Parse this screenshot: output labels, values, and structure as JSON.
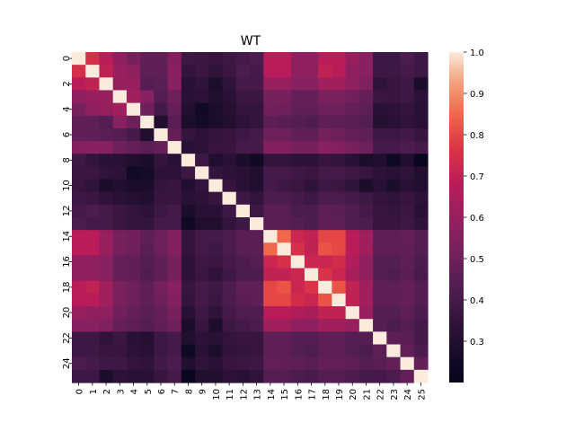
{
  "chart_data": {
    "type": "heatmap",
    "title": "WT",
    "xlabel": "",
    "ylabel": "",
    "x_tick_labels": [
      "0",
      "1",
      "2",
      "3",
      "4",
      "5",
      "6",
      "7",
      "8",
      "9",
      "10",
      "11",
      "12",
      "13",
      "14",
      "15",
      "16",
      "17",
      "18",
      "19",
      "20",
      "21",
      "22",
      "23",
      "24",
      "25"
    ],
    "y_tick_labels": [
      "0",
      "2",
      "4",
      "6",
      "8",
      "10",
      "12",
      "14",
      "16",
      "18",
      "20",
      "22",
      "24"
    ],
    "colorbar": {
      "range": [
        0.2,
        1.0
      ],
      "tick_labels": [
        "0.3",
        "0.4",
        "0.5",
        "0.6",
        "0.7",
        "0.8",
        "0.9",
        "1.0"
      ],
      "colormap": "rocket"
    },
    "grid": false,
    "values": [
      [
        1.0,
        0.75,
        0.68,
        0.58,
        0.52,
        0.47,
        0.47,
        0.55,
        0.38,
        0.37,
        0.36,
        0.38,
        0.4,
        0.42,
        0.68,
        0.68,
        0.58,
        0.58,
        0.68,
        0.68,
        0.6,
        0.56,
        0.38,
        0.38,
        0.42,
        0.38
      ],
      [
        0.75,
        1.0,
        0.7,
        0.6,
        0.58,
        0.46,
        0.46,
        0.56,
        0.35,
        0.37,
        0.34,
        0.37,
        0.42,
        0.4,
        0.68,
        0.68,
        0.58,
        0.58,
        0.7,
        0.68,
        0.58,
        0.56,
        0.38,
        0.38,
        0.4,
        0.38
      ],
      [
        0.68,
        0.7,
        1.0,
        0.6,
        0.6,
        0.44,
        0.45,
        0.56,
        0.32,
        0.34,
        0.28,
        0.34,
        0.4,
        0.4,
        0.6,
        0.6,
        0.56,
        0.56,
        0.62,
        0.62,
        0.58,
        0.54,
        0.34,
        0.36,
        0.38,
        0.28
      ],
      [
        0.58,
        0.6,
        0.6,
        1.0,
        0.62,
        0.56,
        0.44,
        0.5,
        0.32,
        0.33,
        0.3,
        0.32,
        0.37,
        0.37,
        0.52,
        0.52,
        0.48,
        0.48,
        0.53,
        0.53,
        0.51,
        0.48,
        0.37,
        0.36,
        0.38,
        0.33
      ],
      [
        0.52,
        0.58,
        0.6,
        0.62,
        1.0,
        0.5,
        0.4,
        0.48,
        0.3,
        0.25,
        0.28,
        0.31,
        0.35,
        0.35,
        0.51,
        0.5,
        0.47,
        0.47,
        0.5,
        0.5,
        0.48,
        0.46,
        0.32,
        0.33,
        0.35,
        0.32
      ],
      [
        0.47,
        0.46,
        0.44,
        0.56,
        0.5,
        1.0,
        0.3,
        0.45,
        0.28,
        0.26,
        0.28,
        0.3,
        0.33,
        0.35,
        0.46,
        0.45,
        0.44,
        0.43,
        0.46,
        0.46,
        0.45,
        0.44,
        0.31,
        0.32,
        0.34,
        0.32
      ],
      [
        0.47,
        0.46,
        0.45,
        0.44,
        0.4,
        0.3,
        1.0,
        0.48,
        0.35,
        0.33,
        0.35,
        0.36,
        0.38,
        0.4,
        0.5,
        0.5,
        0.47,
        0.46,
        0.52,
        0.5,
        0.48,
        0.47,
        0.38,
        0.38,
        0.39,
        0.36
      ],
      [
        0.55,
        0.56,
        0.56,
        0.5,
        0.48,
        0.45,
        0.48,
        1.0,
        0.32,
        0.33,
        0.36,
        0.36,
        0.4,
        0.4,
        0.55,
        0.55,
        0.52,
        0.52,
        0.56,
        0.55,
        0.52,
        0.5,
        0.4,
        0.4,
        0.42,
        0.4
      ],
      [
        0.38,
        0.35,
        0.32,
        0.32,
        0.3,
        0.28,
        0.35,
        0.32,
        1.0,
        0.38,
        0.3,
        0.32,
        0.28,
        0.25,
        0.35,
        0.35,
        0.33,
        0.33,
        0.36,
        0.35,
        0.32,
        0.28,
        0.3,
        0.24,
        0.3,
        0.22
      ],
      [
        0.37,
        0.37,
        0.34,
        0.33,
        0.25,
        0.26,
        0.33,
        0.33,
        0.38,
        1.0,
        0.35,
        0.33,
        0.32,
        0.3,
        0.4,
        0.4,
        0.38,
        0.37,
        0.4,
        0.4,
        0.38,
        0.36,
        0.33,
        0.32,
        0.34,
        0.3
      ],
      [
        0.36,
        0.34,
        0.28,
        0.3,
        0.28,
        0.28,
        0.35,
        0.36,
        0.3,
        0.35,
        1.0,
        0.36,
        0.32,
        0.3,
        0.4,
        0.38,
        0.37,
        0.34,
        0.38,
        0.37,
        0.34,
        0.28,
        0.32,
        0.28,
        0.32,
        0.3
      ],
      [
        0.38,
        0.37,
        0.34,
        0.32,
        0.31,
        0.3,
        0.36,
        0.36,
        0.32,
        0.33,
        0.36,
        1.0,
        0.38,
        0.35,
        0.42,
        0.42,
        0.4,
        0.38,
        0.42,
        0.42,
        0.4,
        0.38,
        0.35,
        0.34,
        0.36,
        0.33
      ],
      [
        0.4,
        0.42,
        0.4,
        0.37,
        0.35,
        0.33,
        0.38,
        0.4,
        0.28,
        0.32,
        0.32,
        0.38,
        1.0,
        0.38,
        0.45,
        0.45,
        0.42,
        0.42,
        0.46,
        0.45,
        0.43,
        0.4,
        0.36,
        0.35,
        0.37,
        0.32
      ],
      [
        0.42,
        0.4,
        0.4,
        0.37,
        0.35,
        0.35,
        0.4,
        0.4,
        0.25,
        0.3,
        0.3,
        0.35,
        0.38,
        1.0,
        0.45,
        0.45,
        0.44,
        0.42,
        0.46,
        0.46,
        0.43,
        0.42,
        0.36,
        0.36,
        0.38,
        0.34
      ],
      [
        0.68,
        0.68,
        0.6,
        0.52,
        0.51,
        0.46,
        0.5,
        0.55,
        0.35,
        0.4,
        0.4,
        0.42,
        0.45,
        0.45,
        1.0,
        0.85,
        0.72,
        0.7,
        0.8,
        0.8,
        0.68,
        0.62,
        0.46,
        0.46,
        0.48,
        0.44
      ],
      [
        0.68,
        0.68,
        0.6,
        0.52,
        0.5,
        0.45,
        0.5,
        0.55,
        0.35,
        0.4,
        0.38,
        0.42,
        0.45,
        0.45,
        0.85,
        1.0,
        0.75,
        0.7,
        0.82,
        0.8,
        0.68,
        0.62,
        0.46,
        0.46,
        0.47,
        0.44
      ],
      [
        0.58,
        0.58,
        0.56,
        0.48,
        0.47,
        0.44,
        0.47,
        0.52,
        0.33,
        0.38,
        0.37,
        0.4,
        0.42,
        0.44,
        0.72,
        0.75,
        1.0,
        0.72,
        0.72,
        0.74,
        0.66,
        0.58,
        0.44,
        0.44,
        0.46,
        0.42
      ],
      [
        0.58,
        0.58,
        0.56,
        0.48,
        0.47,
        0.43,
        0.46,
        0.52,
        0.33,
        0.37,
        0.34,
        0.38,
        0.42,
        0.42,
        0.7,
        0.7,
        0.72,
        1.0,
        0.76,
        0.72,
        0.64,
        0.58,
        0.44,
        0.43,
        0.45,
        0.41
      ],
      [
        0.68,
        0.7,
        0.62,
        0.53,
        0.5,
        0.46,
        0.52,
        0.56,
        0.36,
        0.4,
        0.38,
        0.42,
        0.46,
        0.46,
        0.8,
        0.82,
        0.72,
        0.76,
        1.0,
        0.82,
        0.7,
        0.62,
        0.46,
        0.46,
        0.48,
        0.44
      ],
      [
        0.68,
        0.68,
        0.62,
        0.53,
        0.5,
        0.46,
        0.5,
        0.55,
        0.35,
        0.4,
        0.37,
        0.42,
        0.45,
        0.46,
        0.8,
        0.8,
        0.74,
        0.72,
        0.82,
        1.0,
        0.7,
        0.62,
        0.46,
        0.46,
        0.48,
        0.44
      ],
      [
        0.6,
        0.58,
        0.58,
        0.51,
        0.48,
        0.45,
        0.48,
        0.52,
        0.32,
        0.38,
        0.34,
        0.4,
        0.43,
        0.43,
        0.68,
        0.68,
        0.66,
        0.64,
        0.7,
        0.7,
        1.0,
        0.6,
        0.44,
        0.44,
        0.46,
        0.42
      ],
      [
        0.56,
        0.56,
        0.54,
        0.48,
        0.46,
        0.44,
        0.47,
        0.5,
        0.28,
        0.36,
        0.28,
        0.38,
        0.4,
        0.42,
        0.62,
        0.62,
        0.58,
        0.58,
        0.62,
        0.62,
        0.6,
        1.0,
        0.44,
        0.42,
        0.44,
        0.4
      ],
      [
        0.38,
        0.38,
        0.34,
        0.37,
        0.32,
        0.31,
        0.38,
        0.4,
        0.3,
        0.33,
        0.32,
        0.35,
        0.36,
        0.36,
        0.46,
        0.46,
        0.44,
        0.44,
        0.46,
        0.46,
        0.44,
        0.44,
        1.0,
        0.46,
        0.45,
        0.4
      ],
      [
        0.38,
        0.38,
        0.36,
        0.36,
        0.33,
        0.32,
        0.38,
        0.4,
        0.24,
        0.32,
        0.28,
        0.34,
        0.35,
        0.36,
        0.46,
        0.46,
        0.44,
        0.43,
        0.46,
        0.46,
        0.44,
        0.42,
        0.46,
        1.0,
        0.48,
        0.42
      ],
      [
        0.42,
        0.4,
        0.38,
        0.38,
        0.35,
        0.34,
        0.39,
        0.42,
        0.3,
        0.34,
        0.32,
        0.36,
        0.37,
        0.38,
        0.48,
        0.47,
        0.46,
        0.45,
        0.48,
        0.48,
        0.46,
        0.44,
        0.45,
        0.48,
        1.0,
        0.48
      ],
      [
        0.38,
        0.38,
        0.28,
        0.33,
        0.32,
        0.32,
        0.36,
        0.4,
        0.22,
        0.3,
        0.3,
        0.33,
        0.32,
        0.34,
        0.44,
        0.44,
        0.42,
        0.41,
        0.44,
        0.44,
        0.42,
        0.4,
        0.4,
        0.42,
        0.48,
        1.0
      ]
    ]
  }
}
